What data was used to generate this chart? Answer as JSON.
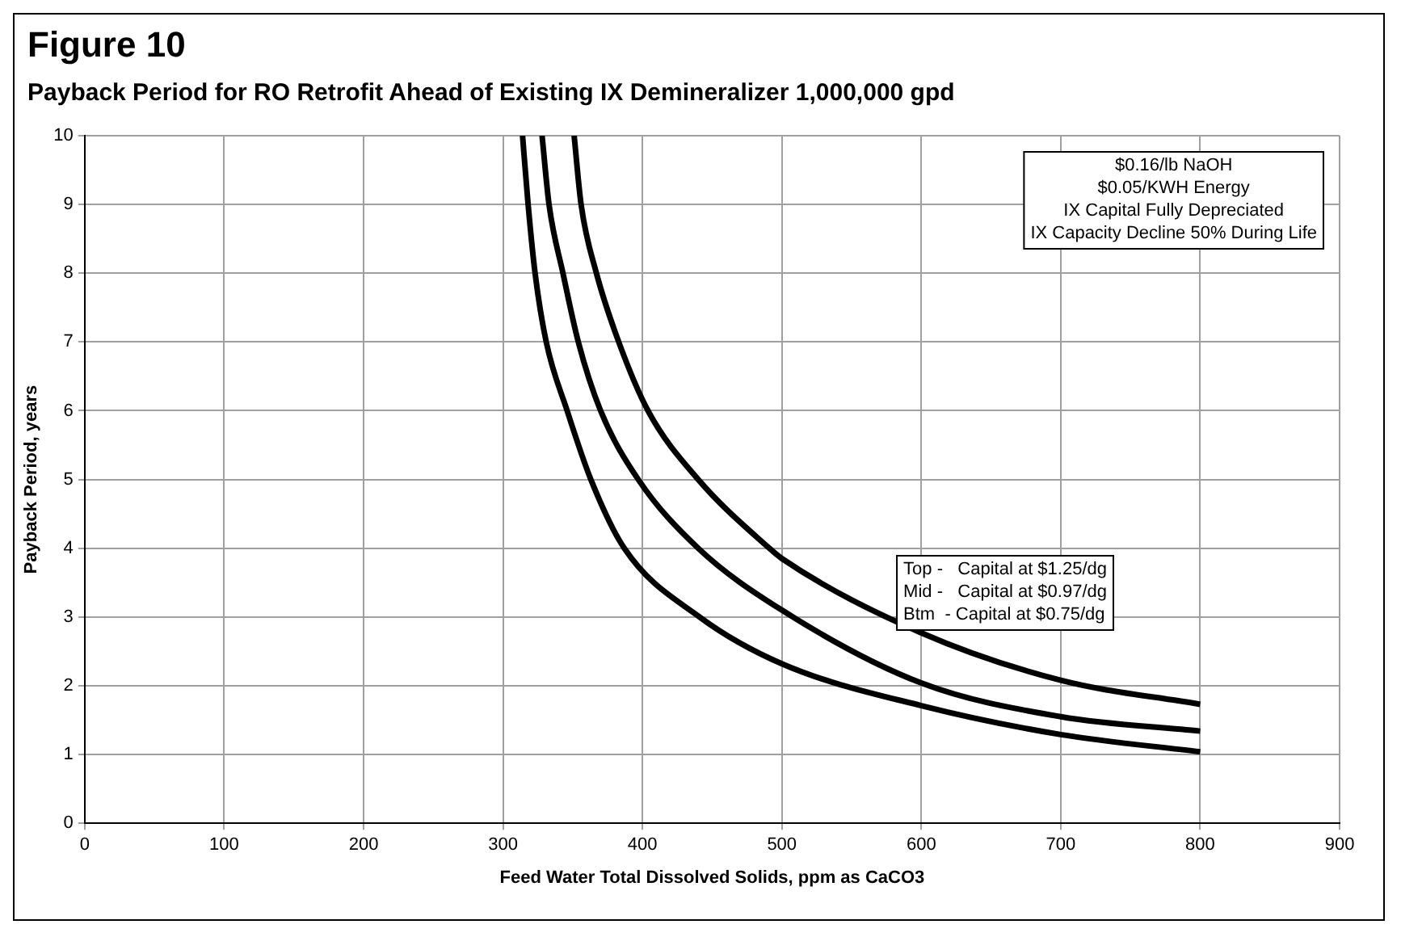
{
  "chart_data": {
    "type": "line",
    "title": "Figure 10",
    "subtitle": "Payback Period for RO Retrofit Ahead of Existing IX Demineralizer 1,000,000 gpd",
    "xlabel": "Feed Water Total Dissolved Solids, ppm as CaCO3",
    "ylabel": "Payback Period, years",
    "series": [
      {
        "color": "#000000",
        "x": [
          351,
          356,
          367,
          383,
          404,
          440,
          491,
          500,
          600,
          700,
          800
        ],
        "values": [
          10,
          9,
          8,
          7,
          6,
          5,
          4,
          3.85,
          2.77,
          2.08,
          1.73
        ]
      },
      {
        "color": "#000000",
        "x": [
          328,
          333,
          343,
          354,
          370,
          397,
          440,
          500,
          600,
          700,
          800
        ],
        "values": [
          10,
          9,
          8,
          7,
          6,
          5,
          4,
          3.1,
          2.04,
          1.55,
          1.34
        ]
      },
      {
        "color": "#000000",
        "x": [
          314,
          318,
          323,
          331,
          346,
          363,
          387,
          441,
          500,
          600,
          700,
          800
        ],
        "values": [
          10,
          9,
          8,
          7,
          6,
          5,
          4,
          3,
          2.32,
          1.71,
          1.29,
          1.04
        ]
      }
    ],
    "xlim": [
      0,
      900
    ],
    "xticks": [
      0,
      100,
      200,
      300,
      400,
      500,
      600,
      700,
      800,
      900
    ],
    "ylim": [
      0,
      10
    ],
    "yticks": [
      0,
      1,
      2,
      3,
      4,
      5,
      6,
      7,
      8,
      9,
      10
    ],
    "grid": true,
    "legend": false,
    "marker": "none",
    "line_style": "solid",
    "annotations": [
      "$0.16/lb NaOH\n$0.05/KWH Energy\nIX Capital Fully Depreciated\nIX Capacity Decline 50% During Life",
      "Top -   Capital at $1.25/dg\nMid -   Capital at $0.97/dg\nBtm  - Capital at $0.75/dg"
    ]
  }
}
